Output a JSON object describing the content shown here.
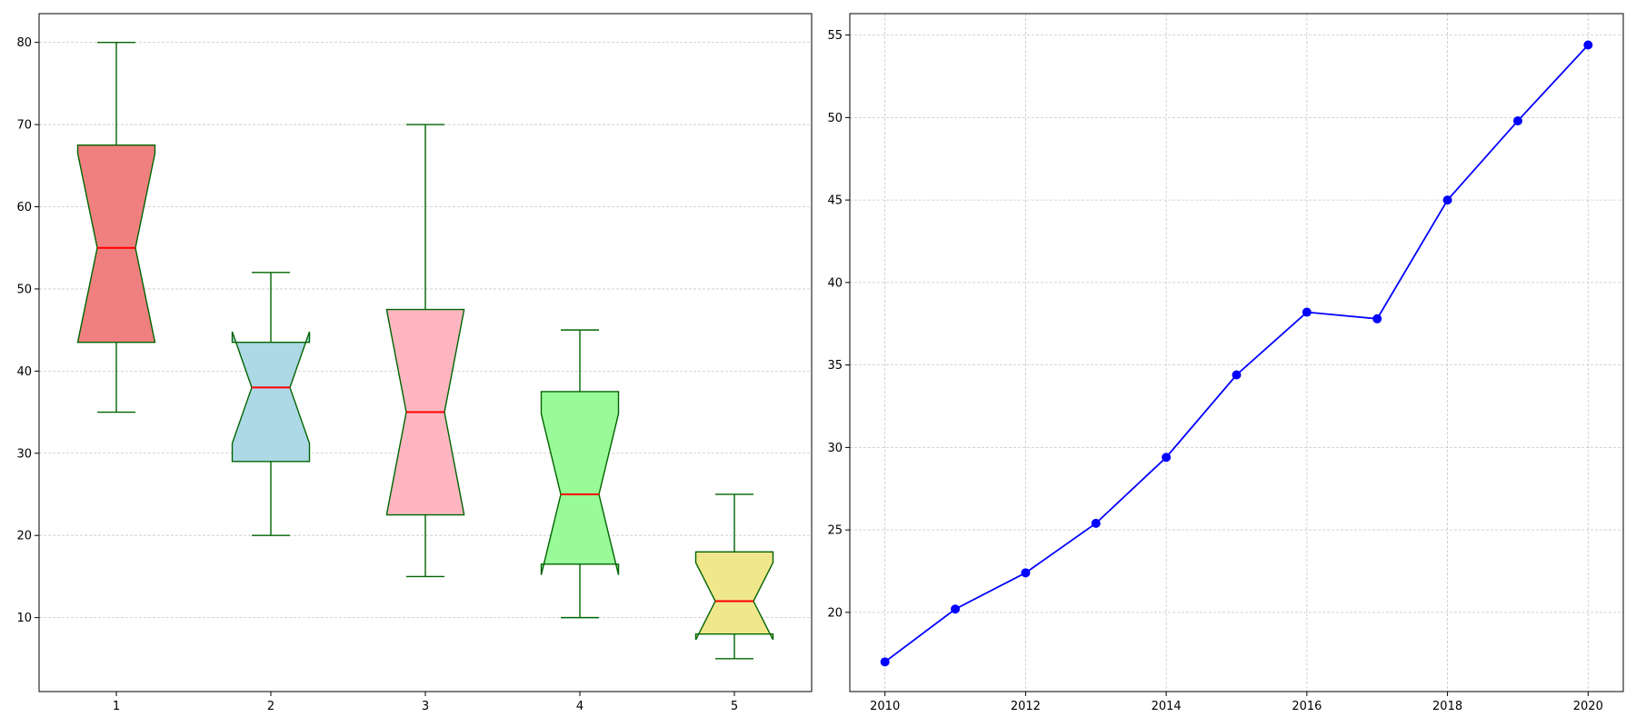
{
  "chart_data": [
    {
      "type": "boxplot",
      "notched": true,
      "categories": [
        "1",
        "2",
        "3",
        "4",
        "5"
      ],
      "boxes": [
        {
          "label": "1",
          "whislo": 35,
          "q1": 43.5,
          "med": 55,
          "q3": 67.5,
          "whishi": 80,
          "notch_lo": 43.5,
          "notch_hi": 66.5,
          "color": "#F08080"
        },
        {
          "label": "2",
          "whislo": 20,
          "q1": 29,
          "med": 38,
          "q3": 43.5,
          "whishi": 52,
          "notch_lo": 31.2,
          "notch_hi": 44.8,
          "color": "#ADD8E6"
        },
        {
          "label": "3",
          "whislo": 15,
          "q1": 22.5,
          "med": 35,
          "q3": 47.5,
          "whishi": 70,
          "notch_lo": 22.6,
          "notch_hi": 47.4,
          "color": "#FFB6C1"
        },
        {
          "label": "4",
          "whislo": 10,
          "q1": 16.5,
          "med": 25,
          "q3": 37.5,
          "whishi": 45,
          "notch_lo": 15.2,
          "notch_hi": 34.8,
          "color": "#98FB98"
        },
        {
          "label": "5",
          "whislo": 5,
          "q1": 8,
          "med": 12,
          "q3": 18,
          "whishi": 25,
          "notch_lo": 7.3,
          "notch_hi": 16.7,
          "color": "#F0E68C"
        }
      ],
      "box_edge_color": "#006400",
      "median_color": "#FF0000",
      "ylim": [
        1,
        83.5
      ],
      "yticks": [
        10,
        20,
        30,
        40,
        50,
        60,
        70,
        80
      ],
      "grid": "y-dashed",
      "title": "",
      "xlabel": "",
      "ylabel": ""
    },
    {
      "type": "line",
      "x": [
        2010,
        2011,
        2012,
        2013,
        2014,
        2015,
        2016,
        2017,
        2018,
        2019,
        2020
      ],
      "series": [
        {
          "values": [
            17.0,
            20.2,
            22.4,
            25.4,
            29.4,
            34.4,
            38.2,
            37.8,
            45.0,
            49.8,
            54.4
          ],
          "color": "#0000FF",
          "marker": "circle"
        }
      ],
      "xlim": [
        2009.5,
        2020.5
      ],
      "ylim": [
        15.2,
        56.3
      ],
      "xticks": [
        2010,
        2012,
        2014,
        2016,
        2018,
        2020
      ],
      "yticks": [
        20,
        25,
        30,
        35,
        40,
        45,
        50,
        55
      ],
      "grid": "both-dashed",
      "title": "",
      "xlabel": "",
      "ylabel": ""
    }
  ]
}
